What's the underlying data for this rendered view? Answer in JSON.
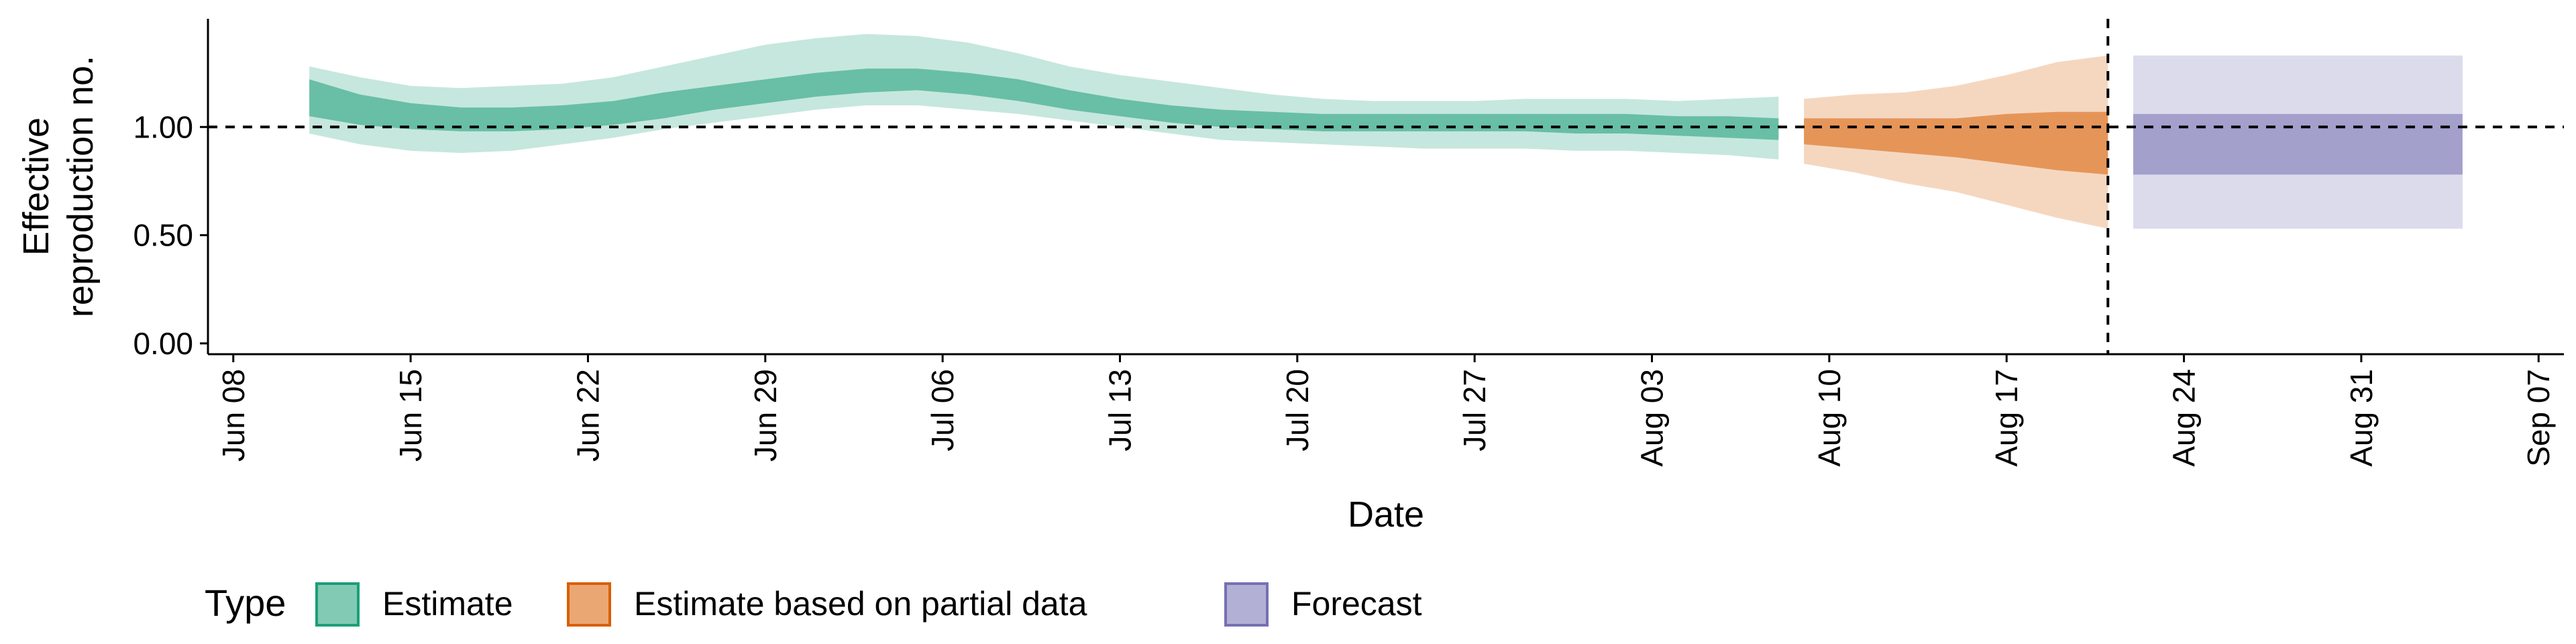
{
  "chart_data": {
    "type": "area",
    "xlabel": "Date",
    "ylabel": [
      "Effective",
      "reproduction no."
    ],
    "ylim": [
      -0.05,
      1.5
    ],
    "y_ticks": [
      0.0,
      0.5,
      1.0
    ],
    "y_tick_labels": [
      "0.00",
      "0.50",
      "1.00"
    ],
    "xlim": [
      "2020-06-07",
      "2020-09-08"
    ],
    "x_ticks": [
      "2020-06-08",
      "2020-06-15",
      "2020-06-22",
      "2020-06-29",
      "2020-07-06",
      "2020-07-13",
      "2020-07-20",
      "2020-07-27",
      "2020-08-03",
      "2020-08-10",
      "2020-08-17",
      "2020-08-24",
      "2020-08-31",
      "2020-09-07"
    ],
    "x_tick_labels": [
      "Jun 08",
      "Jun 15",
      "Jun 22",
      "Jun 29",
      "Jul 06",
      "Jul 13",
      "Jul 20",
      "Jul 27",
      "Aug 03",
      "Aug 10",
      "Aug 17",
      "Aug 24",
      "Aug 31",
      "Sep 07"
    ],
    "reference_line_y": 1.0,
    "vertical_line_x": "2020-08-21",
    "grid": false,
    "legend": {
      "title": "Type",
      "position": "bottom-left",
      "entries": [
        "Estimate",
        "Estimate based on partial data",
        "Forecast"
      ]
    },
    "series": [
      {
        "name": "Estimate",
        "fill": "#1b9e77",
        "outer_alpha": 0.25,
        "inner_alpha": 0.55,
        "x": [
          "2020-06-11",
          "2020-06-13",
          "2020-06-15",
          "2020-06-17",
          "2020-06-19",
          "2020-06-21",
          "2020-06-23",
          "2020-06-25",
          "2020-06-27",
          "2020-06-29",
          "2020-07-01",
          "2020-07-03",
          "2020-07-05",
          "2020-07-07",
          "2020-07-09",
          "2020-07-11",
          "2020-07-13",
          "2020-07-15",
          "2020-07-17",
          "2020-07-19",
          "2020-07-21",
          "2020-07-23",
          "2020-07-25",
          "2020-07-27",
          "2020-07-29",
          "2020-07-31",
          "2020-08-02",
          "2020-08-04",
          "2020-08-06",
          "2020-08-08"
        ],
        "outer_lower": [
          0.97,
          0.92,
          0.89,
          0.88,
          0.89,
          0.92,
          0.95,
          0.99,
          1.02,
          1.05,
          1.08,
          1.1,
          1.1,
          1.08,
          1.06,
          1.03,
          1.0,
          0.97,
          0.94,
          0.93,
          0.92,
          0.91,
          0.9,
          0.9,
          0.9,
          0.89,
          0.89,
          0.88,
          0.87,
          0.85
        ],
        "outer_upper": [
          1.28,
          1.23,
          1.19,
          1.18,
          1.19,
          1.2,
          1.23,
          1.28,
          1.33,
          1.38,
          1.41,
          1.43,
          1.42,
          1.39,
          1.34,
          1.28,
          1.24,
          1.21,
          1.18,
          1.15,
          1.13,
          1.12,
          1.12,
          1.12,
          1.13,
          1.13,
          1.13,
          1.12,
          1.13,
          1.14
        ],
        "inner_lower": [
          1.05,
          1.01,
          0.99,
          0.98,
          0.98,
          0.99,
          1.01,
          1.04,
          1.08,
          1.11,
          1.14,
          1.16,
          1.17,
          1.15,
          1.12,
          1.08,
          1.05,
          1.02,
          1.0,
          0.99,
          0.98,
          0.98,
          0.98,
          0.98,
          0.98,
          0.97,
          0.97,
          0.96,
          0.95,
          0.94
        ],
        "inner_upper": [
          1.22,
          1.15,
          1.11,
          1.09,
          1.09,
          1.1,
          1.12,
          1.16,
          1.19,
          1.22,
          1.25,
          1.27,
          1.27,
          1.25,
          1.22,
          1.17,
          1.13,
          1.1,
          1.08,
          1.07,
          1.06,
          1.06,
          1.06,
          1.06,
          1.06,
          1.06,
          1.06,
          1.05,
          1.05,
          1.04
        ]
      },
      {
        "name": "Estimate based on partial data",
        "fill": "#d95f02",
        "outer_alpha": 0.25,
        "inner_alpha": 0.55,
        "x": [
          "2020-08-09",
          "2020-08-11",
          "2020-08-13",
          "2020-08-15",
          "2020-08-17",
          "2020-08-19",
          "2020-08-21"
        ],
        "outer_lower": [
          0.83,
          0.79,
          0.74,
          0.7,
          0.64,
          0.58,
          0.53
        ],
        "outer_upper": [
          1.13,
          1.15,
          1.16,
          1.19,
          1.24,
          1.3,
          1.33
        ],
        "inner_lower": [
          0.92,
          0.9,
          0.88,
          0.86,
          0.83,
          0.8,
          0.78
        ],
        "inner_upper": [
          1.04,
          1.04,
          1.04,
          1.04,
          1.06,
          1.07,
          1.07
        ]
      },
      {
        "name": "Forecast",
        "fill": "#7570b3",
        "outer_alpha": 0.25,
        "inner_alpha": 0.55,
        "x": [
          "2020-08-22",
          "2020-09-04"
        ],
        "outer_lower": [
          0.53,
          0.53
        ],
        "outer_upper": [
          1.33,
          1.33
        ],
        "inner_lower": [
          0.78,
          0.78
        ],
        "inner_upper": [
          1.06,
          1.06
        ]
      }
    ]
  }
}
